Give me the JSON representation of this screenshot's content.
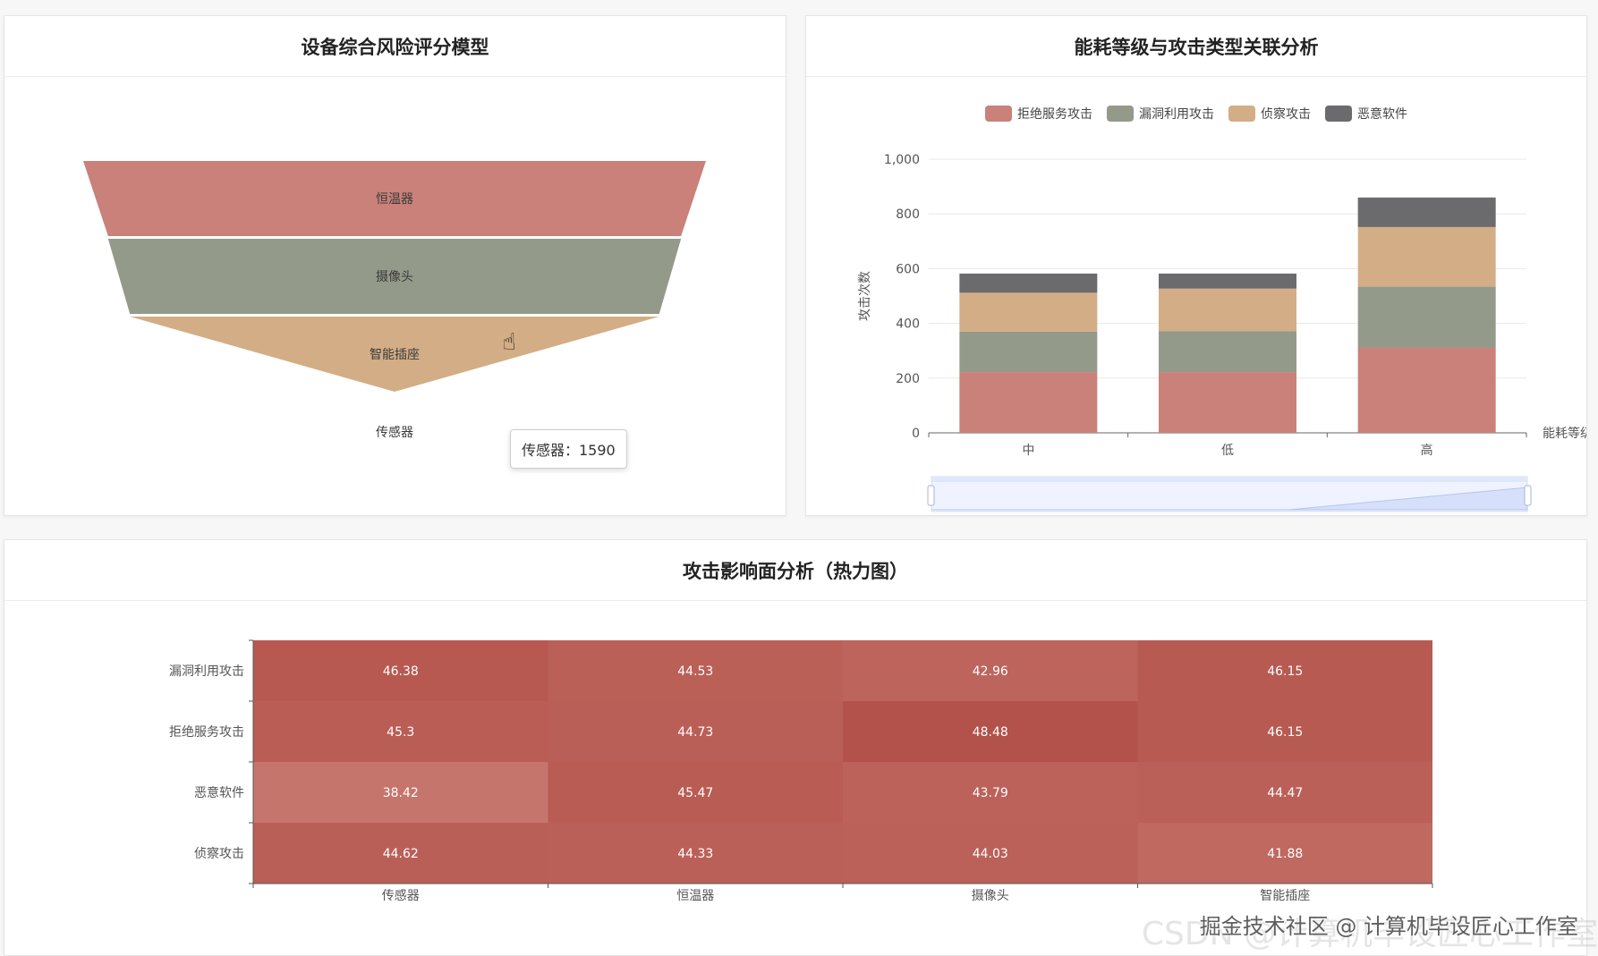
{
  "funnel_card": {
    "title": "设备综合风险评分模型",
    "tooltip": "传感器：1590"
  },
  "bar_card": {
    "title": "能耗等级与攻击类型关联分析"
  },
  "heatmap_card": {
    "title": "攻击影响面分析（热力图）"
  },
  "watermark": "掘金技术社区 @ 计算机毕设匠心工作室",
  "watermark_bg": "CSDN @计算机毕设匠心工作室",
  "chart_data": [
    {
      "type": "funnel",
      "categories": [
        "恒温器",
        "摄像头",
        "智能插座",
        "传感器"
      ],
      "colors": [
        "#c9817a",
        "#939a8a",
        "#d3ad85",
        "#78787b"
      ],
      "values": [
        100,
        92,
        85,
        0
      ],
      "highlighted": {
        "name": "传感器",
        "value": 1590
      }
    },
    {
      "type": "bar",
      "stacked": true,
      "categories": [
        "中",
        "低",
        "高"
      ],
      "series": [
        {
          "name": "拒绝服务攻击",
          "color": "#c9817a",
          "values": [
            222,
            222,
            312
          ]
        },
        {
          "name": "漏洞利用攻击",
          "color": "#939a8a",
          "values": [
            148,
            150,
            222
          ]
        },
        {
          "name": "侦察攻击",
          "color": "#d3ad85",
          "values": [
            142,
            155,
            218
          ]
        },
        {
          "name": "恶意软件",
          "color": "#6b6b6e",
          "values": [
            70,
            55,
            108
          ]
        }
      ],
      "ylabel": "攻击次数",
      "xlabel": "能耗等级",
      "ylim": [
        0,
        1000
      ],
      "yticks": [
        "0",
        "200",
        "400",
        "600",
        "800",
        "1,000"
      ],
      "legend_position": "top-center",
      "grid": true,
      "datazoom": {
        "start": 0,
        "end": 100,
        "trend": [
          0,
          0,
          0,
          0,
          1,
          2
        ]
      }
    },
    {
      "type": "heatmap",
      "x": [
        "传感器",
        "恒温器",
        "摄像头",
        "智能插座"
      ],
      "y": [
        "漏洞利用攻击",
        "拒绝服务攻击",
        "恶意软件",
        "侦察攻击"
      ],
      "values": [
        [
          46.38,
          44.53,
          42.96,
          46.15
        ],
        [
          45.3,
          44.73,
          48.48,
          46.15
        ],
        [
          38.42,
          45.47,
          43.79,
          44.47
        ],
        [
          44.62,
          44.33,
          44.03,
          41.88
        ]
      ],
      "color_range": [
        "#c6756c",
        "#b3524a"
      ]
    }
  ]
}
